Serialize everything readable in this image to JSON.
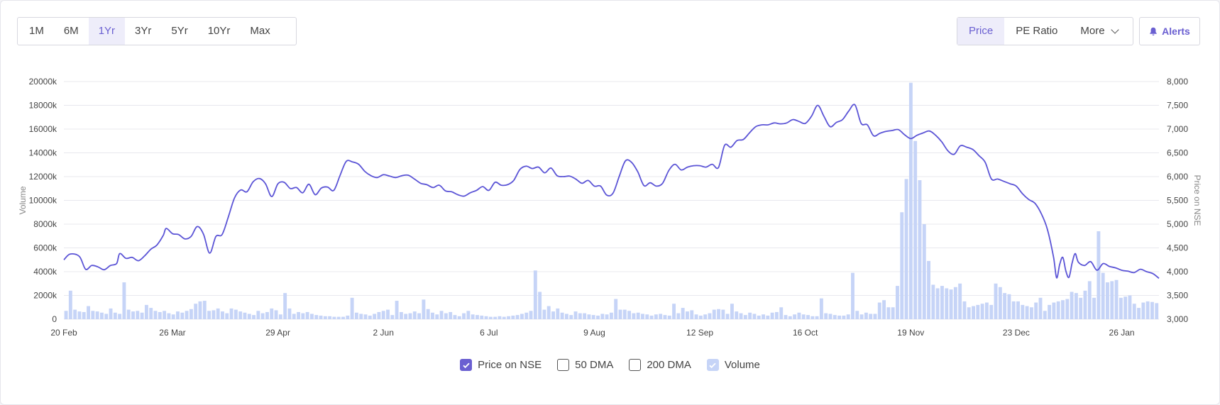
{
  "range_buttons": [
    "1M",
    "6M",
    "1Yr",
    "3Yr",
    "5Yr",
    "10Yr",
    "Max"
  ],
  "active_range": "1Yr",
  "metric_buttons": {
    "price": "Price",
    "pe": "PE Ratio",
    "more": "More"
  },
  "alerts_label": "Alerts",
  "legend": {
    "price": "Price on NSE",
    "dma50": "50 DMA",
    "dma200": "200 DMA",
    "volume": "Volume"
  },
  "colors": {
    "price_line": "#5b54d6",
    "volume_bar": "#c6d4f7",
    "accent": "#6a5fd1"
  },
  "chart_data": {
    "type": "line",
    "xlabel": "",
    "ylabel_left": "Volume",
    "ylabel_right": "Price on NSE",
    "x_ticks": [
      "20 Feb",
      "26 Mar",
      "29 Apr",
      "2 Jun",
      "6 Jul",
      "9 Aug",
      "12 Sep",
      "16 Oct",
      "19 Nov",
      "23 Dec",
      "26 Jan"
    ],
    "x_tick_days": [
      0,
      35,
      69,
      103,
      137,
      171,
      205,
      239,
      273,
      307,
      341
    ],
    "x_range_days": [
      0,
      353
    ],
    "y_left_ticks": [
      "0",
      "2000k",
      "4000k",
      "6000k",
      "8000k",
      "10000k",
      "12000k",
      "14000k",
      "16000k",
      "18000k",
      "20000k"
    ],
    "y_left_range": [
      0,
      20000
    ],
    "y_right_ticks": [
      "3,000",
      "3,500",
      "4,000",
      "4,500",
      "5,000",
      "5,500",
      "6,000",
      "6,500",
      "7,000",
      "7,500",
      "8,000"
    ],
    "y_right_range": [
      3000,
      8000
    ],
    "grid": true,
    "series": [
      {
        "name": "Price on NSE",
        "axis": "right",
        "points": [
          [
            0,
            4250
          ],
          [
            2,
            4370
          ],
          [
            5,
            4320
          ],
          [
            7,
            4050
          ],
          [
            9,
            4130
          ],
          [
            11,
            4100
          ],
          [
            13,
            4040
          ],
          [
            15,
            4130
          ],
          [
            17,
            4170
          ],
          [
            18,
            4380
          ],
          [
            20,
            4280
          ],
          [
            22,
            4300
          ],
          [
            24,
            4230
          ],
          [
            26,
            4330
          ],
          [
            28,
            4470
          ],
          [
            30,
            4560
          ],
          [
            32,
            4760
          ],
          [
            33,
            4910
          ],
          [
            35,
            4800
          ],
          [
            37,
            4780
          ],
          [
            39,
            4690
          ],
          [
            41,
            4740
          ],
          [
            43,
            4950
          ],
          [
            45,
            4790
          ],
          [
            47,
            4390
          ],
          [
            49,
            4740
          ],
          [
            51,
            4780
          ],
          [
            53,
            5150
          ],
          [
            55,
            5550
          ],
          [
            57,
            5720
          ],
          [
            59,
            5680
          ],
          [
            61,
            5890
          ],
          [
            63,
            5960
          ],
          [
            65,
            5850
          ],
          [
            67,
            5580
          ],
          [
            69,
            5850
          ],
          [
            71,
            5880
          ],
          [
            73,
            5750
          ],
          [
            75,
            5770
          ],
          [
            77,
            5660
          ],
          [
            79,
            5840
          ],
          [
            81,
            5620
          ],
          [
            83,
            5760
          ],
          [
            85,
            5780
          ],
          [
            87,
            5710
          ],
          [
            89,
            6020
          ],
          [
            91,
            6320
          ],
          [
            93,
            6310
          ],
          [
            95,
            6260
          ],
          [
            97,
            6110
          ],
          [
            99,
            6020
          ],
          [
            101,
            5980
          ],
          [
            103,
            6040
          ],
          [
            105,
            6010
          ],
          [
            107,
            5980
          ],
          [
            109,
            6020
          ],
          [
            111,
            6030
          ],
          [
            113,
            5950
          ],
          [
            115,
            5860
          ],
          [
            117,
            5830
          ],
          [
            119,
            5770
          ],
          [
            121,
            5820
          ],
          [
            123,
            5700
          ],
          [
            125,
            5680
          ],
          [
            127,
            5620
          ],
          [
            129,
            5590
          ],
          [
            131,
            5660
          ],
          [
            133,
            5710
          ],
          [
            135,
            5790
          ],
          [
            137,
            5710
          ],
          [
            139,
            5880
          ],
          [
            141,
            5820
          ],
          [
            143,
            5830
          ],
          [
            145,
            5920
          ],
          [
            147,
            6150
          ],
          [
            149,
            6220
          ],
          [
            151,
            6170
          ],
          [
            153,
            6200
          ],
          [
            155,
            6080
          ],
          [
            157,
            6180
          ],
          [
            159,
            6020
          ],
          [
            161,
            6000
          ],
          [
            163,
            6010
          ],
          [
            165,
            5950
          ],
          [
            167,
            5860
          ],
          [
            169,
            5920
          ],
          [
            171,
            5800
          ],
          [
            173,
            5800
          ],
          [
            175,
            5610
          ],
          [
            177,
            5650
          ],
          [
            179,
            6000
          ],
          [
            181,
            6330
          ],
          [
            183,
            6300
          ],
          [
            185,
            6100
          ],
          [
            187,
            5810
          ],
          [
            189,
            5870
          ],
          [
            191,
            5800
          ],
          [
            193,
            5860
          ],
          [
            195,
            6130
          ],
          [
            197,
            6260
          ],
          [
            199,
            6140
          ],
          [
            201,
            6200
          ],
          [
            203,
            6230
          ],
          [
            205,
            6230
          ],
          [
            207,
            6200
          ],
          [
            209,
            6260
          ],
          [
            211,
            6190
          ],
          [
            213,
            6660
          ],
          [
            215,
            6620
          ],
          [
            217,
            6760
          ],
          [
            219,
            6780
          ],
          [
            221,
            6920
          ],
          [
            223,
            7050
          ],
          [
            225,
            7090
          ],
          [
            227,
            7090
          ],
          [
            229,
            7130
          ],
          [
            231,
            7110
          ],
          [
            233,
            7130
          ],
          [
            235,
            7200
          ],
          [
            237,
            7160
          ],
          [
            239,
            7120
          ],
          [
            241,
            7270
          ],
          [
            243,
            7500
          ],
          [
            245,
            7270
          ],
          [
            247,
            7050
          ],
          [
            249,
            7140
          ],
          [
            251,
            7200
          ],
          [
            253,
            7380
          ],
          [
            255,
            7510
          ],
          [
            257,
            7120
          ],
          [
            259,
            7090
          ],
          [
            261,
            6860
          ],
          [
            263,
            6910
          ],
          [
            265,
            6950
          ],
          [
            267,
            6970
          ],
          [
            269,
            6990
          ],
          [
            271,
            6880
          ],
          [
            273,
            6800
          ],
          [
            275,
            6870
          ],
          [
            277,
            6920
          ],
          [
            279,
            6960
          ],
          [
            281,
            6870
          ],
          [
            283,
            6730
          ],
          [
            285,
            6540
          ],
          [
            287,
            6470
          ],
          [
            289,
            6650
          ],
          [
            291,
            6620
          ],
          [
            293,
            6570
          ],
          [
            295,
            6440
          ],
          [
            297,
            6300
          ],
          [
            299,
            5950
          ],
          [
            301,
            5950
          ],
          [
            303,
            5900
          ],
          [
            305,
            5850
          ],
          [
            307,
            5800
          ],
          [
            309,
            5640
          ],
          [
            311,
            5520
          ],
          [
            313,
            5440
          ],
          [
            315,
            5230
          ],
          [
            317,
            4900
          ],
          [
            319,
            4310
          ],
          [
            320,
            3870
          ],
          [
            321,
            4150
          ],
          [
            322,
            4300
          ],
          [
            323,
            4010
          ],
          [
            324,
            3880
          ],
          [
            325,
            4180
          ],
          [
            326,
            4380
          ],
          [
            327,
            4200
          ],
          [
            329,
            4130
          ],
          [
            331,
            4210
          ],
          [
            333,
            4030
          ],
          [
            335,
            4170
          ],
          [
            337,
            4110
          ],
          [
            339,
            4080
          ],
          [
            341,
            4030
          ],
          [
            343,
            4010
          ],
          [
            345,
            3980
          ],
          [
            347,
            4050
          ],
          [
            349,
            4000
          ],
          [
            351,
            3960
          ],
          [
            353,
            3860
          ]
        ]
      },
      {
        "name": "Volume",
        "axis": "left",
        "type": "bar",
        "values_k": [
          700,
          2400,
          800,
          650,
          600,
          1100,
          700,
          650,
          550,
          450,
          900,
          550,
          450,
          3100,
          800,
          650,
          700,
          550,
          1200,
          950,
          700,
          600,
          700,
          500,
          400,
          650,
          550,
          700,
          850,
          1300,
          1500,
          1550,
          700,
          750,
          900,
          650,
          500,
          900,
          800,
          650,
          550,
          450,
          350,
          700,
          500,
          600,
          900,
          750,
          400,
          2200,
          900,
          450,
          600,
          500,
          600,
          450,
          350,
          300,
          250,
          250,
          200,
          200,
          200,
          300,
          1800,
          550,
          450,
          400,
          300,
          450,
          600,
          700,
          800,
          350,
          1550,
          600,
          450,
          500,
          650,
          500,
          1650,
          850,
          550,
          400,
          700,
          500,
          600,
          350,
          250,
          500,
          700,
          400,
          350,
          300,
          250,
          200,
          200,
          250,
          200,
          250,
          300,
          350,
          450,
          550,
          700,
          4100,
          2300,
          800,
          1100,
          650,
          900,
          550,
          450,
          350,
          650,
          500,
          500,
          400,
          350,
          300,
          450,
          400,
          550,
          1700,
          800,
          800,
          700,
          500,
          550,
          450,
          400,
          300,
          400,
          450,
          350,
          300,
          1300,
          500,
          950,
          650,
          750,
          400,
          300,
          400,
          500,
          800,
          850,
          800,
          450,
          1300,
          650,
          500,
          350,
          550,
          450,
          300,
          400,
          300,
          550,
          600,
          1000,
          350,
          250,
          400,
          550,
          400,
          350,
          250,
          250,
          1750,
          500,
          450,
          350,
          300,
          300,
          400,
          3900,
          700,
          400,
          550,
          450,
          450,
          1400,
          1600,
          1000,
          1000,
          2800,
          9000,
          11800,
          19900,
          15000,
          11700,
          8000,
          4900,
          2900,
          2600,
          2800,
          2600,
          2500,
          2700,
          3000,
          1500,
          1000,
          1100,
          1200,
          1300,
          1400,
          1200,
          3000,
          2700,
          2200,
          2100,
          1500,
          1500,
          1200,
          1100,
          1000,
          1400,
          1800,
          700,
          1200,
          1400,
          1500,
          1600,
          1700,
          2300,
          2200,
          1800,
          2400,
          3200,
          1800,
          7400,
          3900,
          3100,
          3200,
          3300,
          1800,
          1900,
          2000,
          1300,
          950,
          1400,
          1500,
          1450,
          1350
        ]
      }
    ]
  }
}
